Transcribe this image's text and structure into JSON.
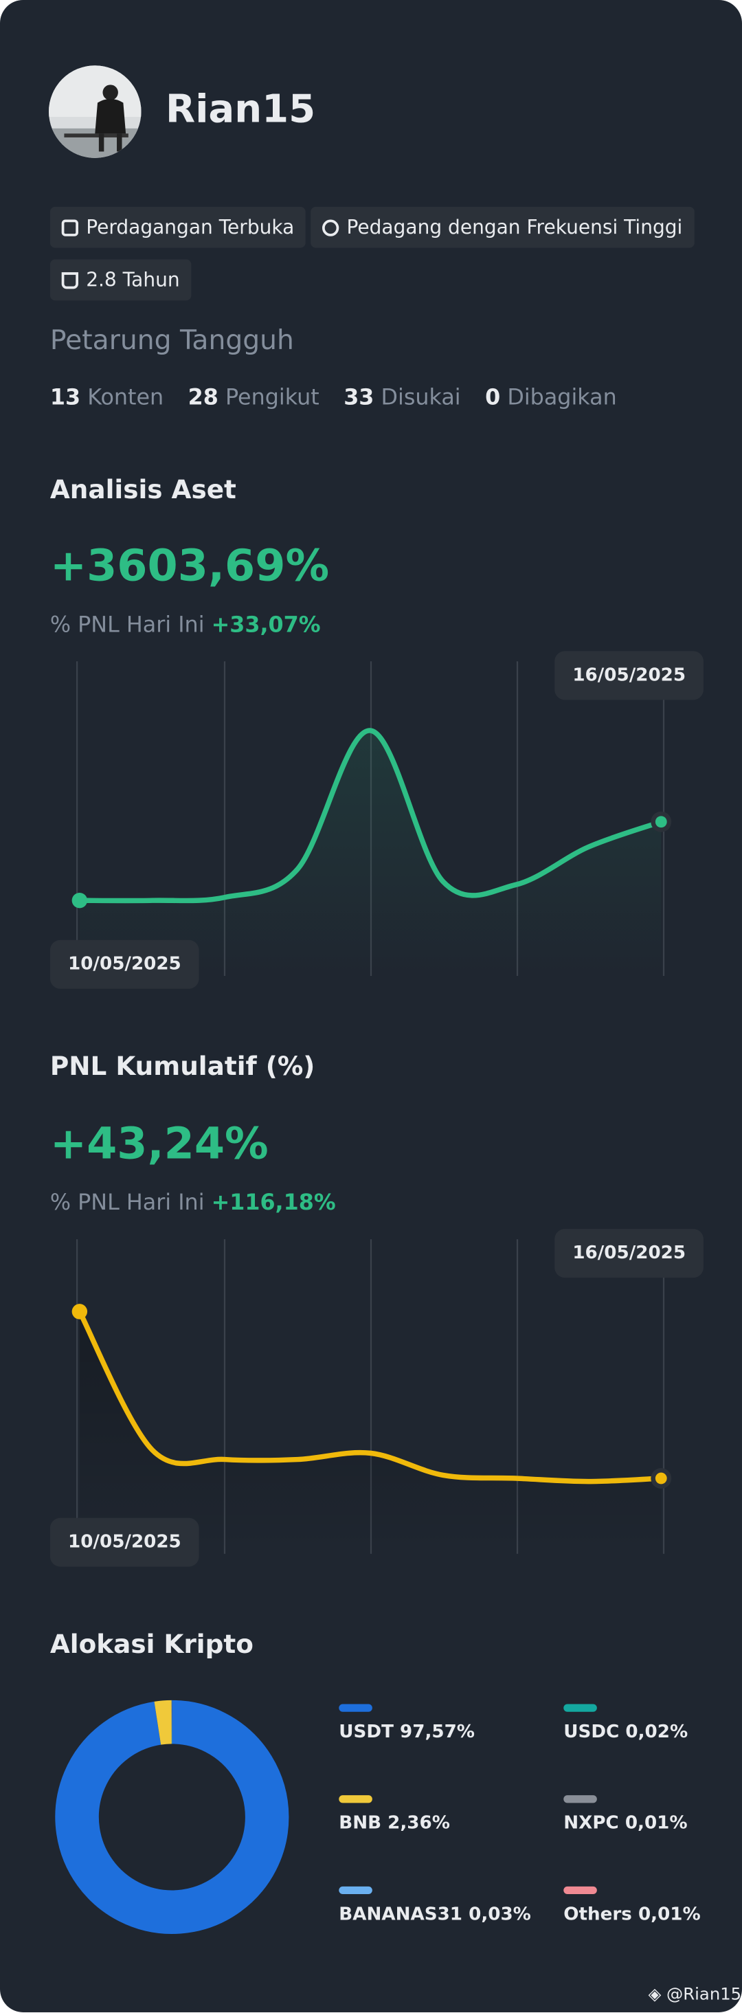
{
  "profile": {
    "name": "Rian15",
    "badges": [
      "Perdagangan Terbuka",
      "Pedagang dengan Frekuensi Tinggi",
      "2.8 Tahun"
    ],
    "subtitle": "Petarung Tangguh",
    "stats": [
      {
        "value": 13,
        "label": "Konten"
      },
      {
        "value": 28,
        "label": "Pengikut"
      },
      {
        "value": 33,
        "label": "Disukai"
      },
      {
        "value": 0,
        "label": "Dibagikan"
      }
    ]
  },
  "asset_analysis": {
    "title": "Analisis Aset",
    "value": "+3603,69%",
    "pnl_label": "% PNL Hari Ini",
    "pnl_value": "+33,07%",
    "start_date": "10/05/2025",
    "end_date": "16/05/2025",
    "chart_data": {
      "type": "line",
      "values": [
        24,
        24,
        25,
        34,
        78,
        30,
        29,
        41,
        49
      ],
      "ylim": [
        0,
        100
      ],
      "color": "#2ebd85"
    }
  },
  "pnl_cumulative": {
    "title": "PNL Kumulatif (%)",
    "value": "+43,24%",
    "pnl_label": "% PNL Hari Ini",
    "pnl_value": "+116,18%",
    "start_date": "10/05/2025",
    "end_date": "16/05/2025",
    "chart_data": {
      "type": "line",
      "values": [
        77,
        33,
        30,
        30,
        32,
        25,
        24,
        23,
        24
      ],
      "ylim": [
        0,
        100
      ],
      "color": "#f0b90b"
    }
  },
  "allocation": {
    "title": "Alokasi Kripto",
    "chart_data": {
      "type": "donut",
      "categories": [
        "USDT",
        "BNB",
        "BANANAS31",
        "USDC",
        "NXPC",
        "Others"
      ],
      "values": [
        97.57,
        2.36,
        0.03,
        0.02,
        0.01,
        0.01
      ],
      "value_labels": [
        "97,57%",
        "2,36%",
        "0,03%",
        "0,02%",
        "0,01%",
        "0,01%"
      ],
      "colors": [
        "#1e6fdc",
        "#f0c93a",
        "#6ab0f0",
        "#14a8a0",
        "#8a8f98",
        "#f08a93"
      ]
    }
  },
  "footer": "@Rian15"
}
